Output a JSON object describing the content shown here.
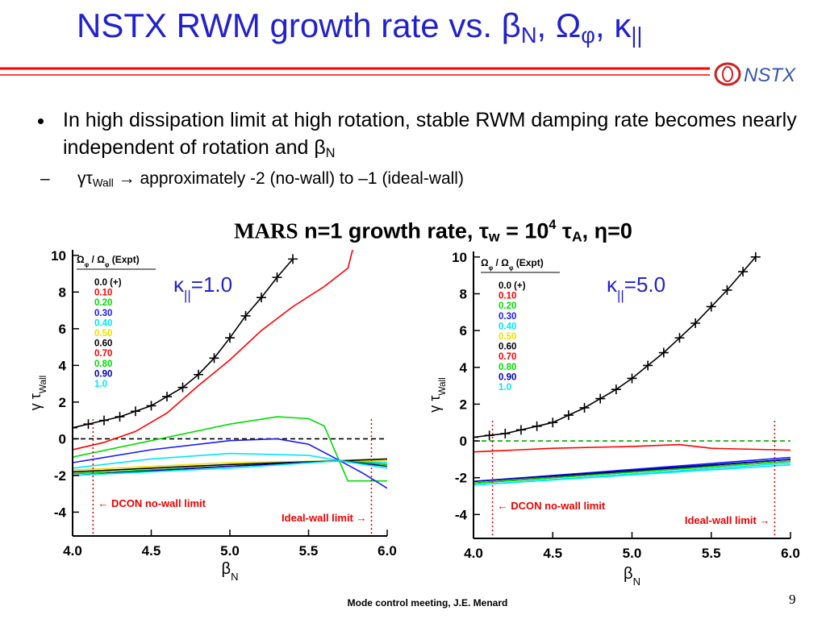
{
  "header": {
    "title": [
      {
        "t": "NSTX RWM growth rate vs. β"
      },
      {
        "t": "N",
        "s": "sub"
      },
      {
        "t": ", Ω"
      },
      {
        "t": "φ",
        "s": "sub"
      },
      {
        "t": ", κ"
      },
      {
        "t": "||",
        "s": "sub"
      }
    ],
    "logo": "NSTX"
  },
  "bullets": [
    [
      {
        "t": "In high dissipation limit at high rotation, stable RWM damping rate becomes nearly independent of rotation and β"
      },
      {
        "t": "N",
        "s": "sub"
      }
    ],
    [
      {
        "t": "γτ"
      },
      {
        "t": "Wall",
        "s": "sub"
      },
      {
        "t": " → approximately -2 (no-wall) to –1 (ideal-wall)"
      }
    ]
  ],
  "charts_heading": [
    {
      "t": "MARS",
      "s": "serif"
    },
    {
      "t": " n=1 growth rate, τ"
    },
    {
      "t": "w",
      "s": "sub"
    },
    {
      "t": " = 10"
    },
    {
      "t": "4",
      "s": "sup"
    },
    {
      "t": " τ"
    },
    {
      "t": "A",
      "s": "sub"
    },
    {
      "t": ", η=0"
    }
  ],
  "footer": {
    "text": "Mode control meeting, J.E. Menard",
    "page": "9"
  },
  "chart_data": [
    {
      "type": "line",
      "annotation": [
        {
          "t": "κ"
        },
        {
          "t": "||",
          "s": "sub"
        },
        {
          "t": "=1.0"
        }
      ],
      "xlabel": [
        {
          "t": "β"
        },
        {
          "t": "N",
          "s": "sub"
        }
      ],
      "ylabel": [
        {
          "t": "γ τ"
        },
        {
          "t": "Wall",
          "s": "sub"
        }
      ],
      "legend_title": [
        {
          "t": "Ω"
        },
        {
          "t": "φ",
          "s": "sub"
        },
        {
          "t": " / Ω"
        },
        {
          "t": "φ",
          "s": "sub"
        },
        {
          "t": " (Expt)"
        }
      ],
      "xlim": [
        4,
        6
      ],
      "ylim": [
        -5.3,
        10.3
      ],
      "xticks": [
        {
          "value": 4,
          "label": "4.0"
        },
        4.5,
        {
          "value": 5,
          "label": "5.0"
        },
        5.5,
        {
          "value": 6,
          "label": "6.0"
        }
      ],
      "yticks": [
        -4,
        -2,
        0,
        2,
        4,
        6,
        8,
        10
      ],
      "zero_line_color": "#000000",
      "limits": [
        {
          "x": 4.13,
          "label": "← DCON no-wall limit"
        },
        {
          "x": 5.9,
          "label": "Ideal-wall limit →"
        }
      ],
      "series": [
        {
          "name": "0.0 (+)",
          "color": "#000000",
          "markers": true,
          "x": [
            4.0,
            4.1,
            4.2,
            4.3,
            4.4,
            4.5,
            4.6,
            4.7,
            4.8,
            4.9,
            5.0,
            5.1,
            5.2,
            5.3,
            5.4
          ],
          "values": [
            0.6,
            0.8,
            1.0,
            1.2,
            1.5,
            1.8,
            2.3,
            2.8,
            3.5,
            4.4,
            5.5,
            6.7,
            7.7,
            8.8,
            9.8
          ]
        },
        {
          "name": "0.10",
          "color": "#ff0000",
          "x": [
            4.0,
            4.2,
            4.4,
            4.6,
            4.8,
            5.0,
            5.2,
            5.4,
            5.6,
            5.75,
            5.78
          ],
          "values": [
            -0.6,
            -0.2,
            0.4,
            1.4,
            2.9,
            4.3,
            5.9,
            7.2,
            8.3,
            9.3,
            10.3
          ]
        },
        {
          "name": "0.20",
          "color": "#00dd00",
          "x": [
            4.0,
            4.5,
            5.0,
            5.3,
            5.5,
            5.6,
            5.7,
            5.75,
            6.0
          ],
          "values": [
            -1.0,
            -0.1,
            0.8,
            1.2,
            1.1,
            0.7,
            -1.3,
            -2.3,
            -2.3
          ]
        },
        {
          "name": "0.30",
          "color": "#1a1aff",
          "x": [
            4.0,
            4.5,
            5.0,
            5.3,
            5.5,
            5.7,
            5.85,
            6.0
          ],
          "values": [
            -1.3,
            -0.6,
            -0.1,
            0.0,
            -0.3,
            -1.2,
            -1.9,
            -2.7
          ]
        },
        {
          "name": "0.40",
          "color": "#00e5ff",
          "x": [
            4.0,
            4.5,
            5.0,
            5.5,
            5.7,
            6.0
          ],
          "values": [
            -1.6,
            -1.1,
            -0.8,
            -0.9,
            -1.2,
            -1.3
          ]
        },
        {
          "name": "0.50",
          "color": "#f0e000",
          "x": [
            4.0,
            5.0,
            5.7,
            6.0
          ],
          "values": [
            -1.7,
            -1.3,
            -1.2,
            -1.2
          ]
        },
        {
          "name": "0.60",
          "color": "#000000",
          "x": [
            4.0,
            5.0,
            5.7,
            6.0
          ],
          "values": [
            -1.8,
            -1.4,
            -1.2,
            -1.1
          ]
        },
        {
          "name": "0.70",
          "color": "#ff0000",
          "x": [
            4.0,
            5.0,
            5.7,
            6.0
          ],
          "values": [
            -1.9,
            -1.5,
            -1.2,
            -1.4
          ]
        },
        {
          "name": "0.80",
          "color": "#00dd00",
          "x": [
            4.0,
            5.0,
            5.7,
            6.0
          ],
          "values": [
            -1.9,
            -1.5,
            -1.2,
            -1.4
          ]
        },
        {
          "name": "0.90",
          "color": "#0000aa",
          "x": [
            4.0,
            5.0,
            5.7,
            6.0
          ],
          "values": [
            -2.0,
            -1.5,
            -1.2,
            -1.5
          ]
        },
        {
          "name": "1.0",
          "color": "#00e5ff",
          "x": [
            4.0,
            5.0,
            5.7,
            6.0
          ],
          "values": [
            -2.0,
            -1.6,
            -1.2,
            -1.6
          ]
        }
      ]
    },
    {
      "type": "line",
      "annotation": [
        {
          "t": "κ"
        },
        {
          "t": "||",
          "s": "sub"
        },
        {
          "t": "=5.0"
        }
      ],
      "xlabel": [
        {
          "t": "β"
        },
        {
          "t": "N",
          "s": "sub"
        }
      ],
      "ylabel": [
        {
          "t": "γ τ"
        },
        {
          "t": "Wall",
          "s": "sub"
        }
      ],
      "legend_title": [
        {
          "t": "Ω"
        },
        {
          "t": "φ",
          "s": "sub"
        },
        {
          "t": " / Ω"
        },
        {
          "t": "φ",
          "s": "sub"
        },
        {
          "t": " (Expt)"
        }
      ],
      "xlim": [
        4,
        6
      ],
      "ylim": [
        -5.3,
        10.3
      ],
      "xticks": [
        {
          "value": 4,
          "label": "4.0"
        },
        4.5,
        {
          "value": 5,
          "label": "5.0"
        },
        5.5,
        {
          "value": 6,
          "label": "6.0"
        }
      ],
      "yticks": [
        -4,
        -2,
        0,
        2,
        4,
        6,
        8,
        10
      ],
      "zero_line_color": "#00aa00",
      "limits": [
        {
          "x": 4.12,
          "label": "← DCON no-wall limit"
        },
        {
          "x": 5.9,
          "label": "Ideal-wall limit →"
        }
      ],
      "series": [
        {
          "name": "0.0 (+)",
          "color": "#000000",
          "markers": true,
          "x": [
            4.0,
            4.1,
            4.2,
            4.3,
            4.4,
            4.5,
            4.6,
            4.7,
            4.8,
            4.9,
            5.0,
            5.1,
            5.2,
            5.3,
            5.4,
            5.5,
            5.6,
            5.7,
            5.78
          ],
          "values": [
            0.2,
            0.3,
            0.4,
            0.6,
            0.8,
            1.0,
            1.4,
            1.8,
            2.3,
            2.8,
            3.4,
            4.1,
            4.8,
            5.6,
            6.4,
            7.3,
            8.2,
            9.2,
            10.0
          ]
        },
        {
          "name": "0.10",
          "color": "#ff0000",
          "x": [
            4.0,
            4.5,
            5.0,
            5.3,
            5.5,
            6.0
          ],
          "values": [
            -0.6,
            -0.4,
            -0.3,
            -0.2,
            -0.4,
            -0.5
          ]
        },
        {
          "name": "0.20",
          "color": "#00dd00",
          "x": [
            4.0,
            6.0
          ],
          "values": [
            -2.3,
            -1.1
          ]
        },
        {
          "name": "0.30",
          "color": "#1a1aff",
          "x": [
            4.0,
            6.0
          ],
          "values": [
            -2.2,
            -0.9
          ]
        },
        {
          "name": "0.40",
          "color": "#00e5ff",
          "x": [
            4.0,
            6.0
          ],
          "values": [
            -2.4,
            -1.2
          ]
        },
        {
          "name": "0.50",
          "color": "#f0e000",
          "x": [
            4.0,
            6.0
          ],
          "values": [
            -2.3,
            -1.1
          ]
        },
        {
          "name": "0.60",
          "color": "#000000",
          "x": [
            4.0,
            6.0
          ],
          "values": [
            -2.3,
            -1.0
          ]
        },
        {
          "name": "0.70",
          "color": "#ff0000",
          "x": [
            4.0,
            6.0
          ],
          "values": [
            -2.3,
            -1.1
          ]
        },
        {
          "name": "0.80",
          "color": "#00dd00",
          "x": [
            4.0,
            6.0
          ],
          "values": [
            -2.3,
            -1.1
          ]
        },
        {
          "name": "0.90",
          "color": "#0000aa",
          "x": [
            4.0,
            6.0
          ],
          "values": [
            -2.2,
            -1.0
          ]
        },
        {
          "name": "1.0",
          "color": "#00e5ff",
          "x": [
            4.0,
            6.0
          ],
          "values": [
            -2.4,
            -1.3
          ]
        }
      ]
    }
  ]
}
